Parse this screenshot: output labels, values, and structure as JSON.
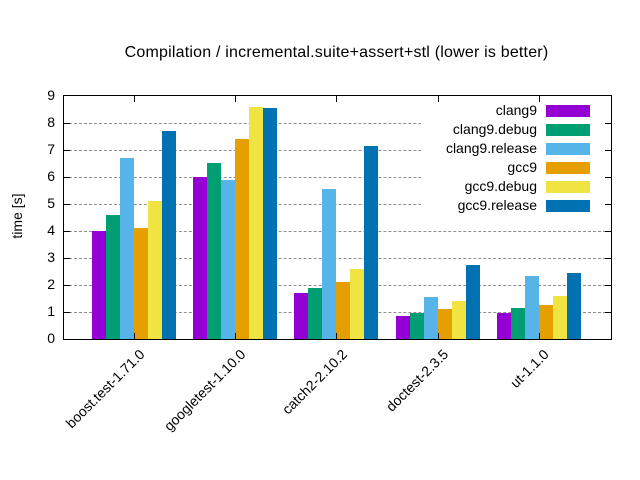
{
  "chart_data": {
    "type": "bar",
    "title": "Compilation / incremental.suite+assert+stl (lower is better)",
    "ylabel": "time [s]",
    "ylim": [
      0,
      9
    ],
    "ytick_values": [
      0,
      1,
      2,
      3,
      4,
      5,
      6,
      7,
      8,
      9
    ],
    "grid": "horizontal-dashed",
    "legend_position": "top-right-inside-opaque",
    "categories": [
      "boost.test-1.71.0",
      "googletest-1.10.0",
      "catch2-2.10.2",
      "doctest-2.3.5",
      "ut-1.1.0"
    ],
    "series": [
      {
        "name": "clang9",
        "color": "#9400d3",
        "values": [
          4.0,
          6.0,
          1.7,
          0.85,
          0.95
        ]
      },
      {
        "name": "clang9.debug",
        "color": "#009e73",
        "values": [
          4.6,
          6.5,
          1.9,
          0.95,
          1.15
        ]
      },
      {
        "name": "clang9.release",
        "color": "#56b4e9",
        "values": [
          6.7,
          5.9,
          5.55,
          1.55,
          2.35
        ]
      },
      {
        "name": "gcc9",
        "color": "#e69f00",
        "values": [
          4.1,
          7.4,
          2.1,
          1.1,
          1.25
        ]
      },
      {
        "name": "gcc9.debug",
        "color": "#f0e442",
        "values": [
          5.1,
          8.6,
          2.6,
          1.4,
          1.6
        ]
      },
      {
        "name": "gcc9.release",
        "color": "#0072b2",
        "values": [
          7.7,
          8.55,
          7.15,
          2.75,
          2.45
        ]
      }
    ],
    "axis_color": "#000000",
    "grid_color": "#8f8f8f",
    "background_color": "#ffffff"
  }
}
